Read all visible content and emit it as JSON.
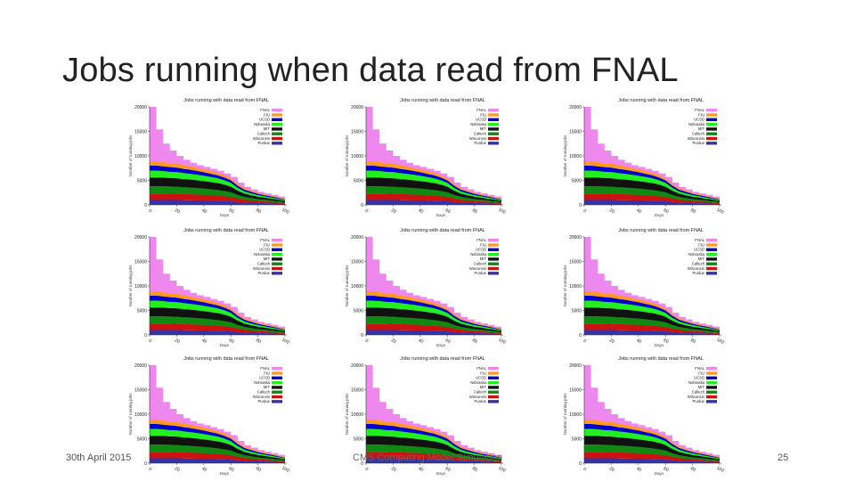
{
  "slide": {
    "title": "Jobs running when data read from FNAL",
    "footer_date": "30th April 2015",
    "footer_center": "CMS Computing Model Simulation",
    "page_number": "25"
  },
  "chart_data": [
    {
      "type": "area",
      "title": "Jobs running with data read from FNAL",
      "xlabel": "Days",
      "ylabel": "Number of running jobs",
      "xlim": [
        0,
        100
      ],
      "ylim": [
        0,
        20000
      ],
      "yticks": [
        0,
        5000,
        10000,
        15000,
        20000
      ],
      "xticks": [
        0,
        20,
        40,
        60,
        80,
        100
      ],
      "legend_position": "top-right",
      "x": [
        0,
        5,
        10,
        15,
        20,
        25,
        30,
        35,
        40,
        45,
        50,
        55,
        60,
        65,
        70,
        75,
        80,
        85,
        90,
        95,
        100
      ],
      "series": [
        {
          "name": "Purdue",
          "color": "#3333aa",
          "values": [
            1000,
            1000,
            1000,
            1000,
            1000,
            950,
            950,
            900,
            900,
            850,
            800,
            750,
            700,
            600,
            500,
            450,
            400,
            350,
            300,
            250,
            200
          ]
        },
        {
          "name": "Wisconsin",
          "color": "#cc1111",
          "values": [
            1300,
            1300,
            1300,
            1300,
            1250,
            1250,
            1200,
            1200,
            1150,
            1100,
            1050,
            1000,
            900,
            700,
            550,
            450,
            400,
            350,
            300,
            250,
            200
          ]
        },
        {
          "name": "Caltech",
          "color": "#118811",
          "values": [
            1500,
            1500,
            1500,
            1450,
            1450,
            1400,
            1400,
            1350,
            1300,
            1250,
            1200,
            1100,
            1000,
            750,
            600,
            500,
            400,
            350,
            300,
            250,
            200
          ]
        },
        {
          "name": "MIT",
          "color": "#111111",
          "values": [
            1800,
            1800,
            1750,
            1700,
            1700,
            1650,
            1600,
            1550,
            1500,
            1450,
            1400,
            1300,
            1100,
            850,
            650,
            550,
            450,
            400,
            350,
            300,
            250
          ]
        },
        {
          "name": "Nebraska",
          "color": "#22ee22",
          "values": [
            1400,
            1400,
            1350,
            1300,
            1300,
            1250,
            1200,
            1150,
            1100,
            1050,
            1000,
            900,
            800,
            600,
            450,
            400,
            350,
            300,
            250,
            200,
            150
          ]
        },
        {
          "name": "UCSD",
          "color": "#0000cc",
          "values": [
            1000,
            1000,
            950,
            950,
            900,
            850,
            800,
            750,
            700,
            650,
            600,
            550,
            500,
            400,
            350,
            300,
            250,
            200,
            200,
            150,
            100
          ]
        },
        {
          "name": "FIU",
          "color": "#ff9922",
          "values": [
            900,
            900,
            850,
            800,
            800,
            750,
            700,
            650,
            600,
            550,
            500,
            450,
            400,
            350,
            300,
            250,
            200,
            200,
            150,
            150,
            100
          ]
        },
        {
          "name": "FNAL",
          "color": "#ee88ee",
          "values": [
            11100,
            6500,
            3800,
            2600,
            1600,
            1100,
            750,
            550,
            500,
            450,
            400,
            350,
            300,
            300,
            250,
            250,
            200,
            200,
            200,
            150,
            150
          ]
        }
      ]
    }
  ]
}
